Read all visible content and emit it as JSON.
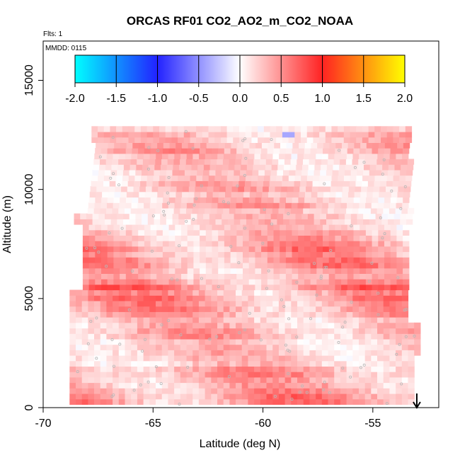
{
  "chart_data": {
    "type": "heatmap",
    "title": "ORCAS RF01 CO2_AO2_m_CO2_NOAA",
    "annotations": {
      "flights": "Flts: 1",
      "date": "MMDD: 0115"
    },
    "xlabel": "Latitude (deg N)",
    "ylabel": "Altitude (m)",
    "xlim": [
      -70,
      -52
    ],
    "ylim": [
      0,
      16800
    ],
    "x_ticks": [
      -70,
      -65,
      -60,
      -55
    ],
    "x_tick_labels": [
      "-70",
      "-65",
      "-60",
      "-55"
    ],
    "y_ticks": [
      0,
      5000,
      10000,
      15000
    ],
    "y_tick_labels": [
      "0",
      "5000",
      "10000",
      "15000"
    ],
    "colorbar": {
      "range": [
        -2.0,
        2.0
      ],
      "ticks": [
        -2.0,
        -1.5,
        -1.0,
        -0.5,
        0.0,
        0.5,
        1.0,
        1.5,
        2.0
      ],
      "tick_labels": [
        "-2.0",
        "-1.5",
        "-1.0",
        "-0.5",
        "0.0",
        "0.5",
        "1.0",
        "1.5",
        "2.0"
      ],
      "colors": [
        "#00ffff",
        "#2222ff",
        "#ffffff",
        "#ff2222",
        "#ffff00"
      ]
    },
    "data_extent": {
      "lat_min": -68.8,
      "lat_max": -53.0,
      "alt_min": 150,
      "alt_max": 12700
    },
    "value_profile": {
      "altitude": [
        200,
        900,
        1600,
        2400,
        3200,
        4000,
        4700,
        5500,
        6300,
        7000,
        7800,
        8600,
        9300,
        10100,
        10900,
        11600,
        12200
      ],
      "mean_value": [
        0.4,
        0.45,
        0.35,
        0.2,
        0.3,
        0.25,
        0.35,
        0.45,
        0.3,
        0.35,
        0.3,
        0.2,
        0.3,
        0.2,
        0.25,
        0.3,
        0.2
      ]
    },
    "negative_patch": {
      "lat": -59.0,
      "alt": 12400,
      "value": -0.4
    },
    "arrow_marker": {
      "lat": -53.0,
      "direction": "down"
    },
    "grid": false
  }
}
